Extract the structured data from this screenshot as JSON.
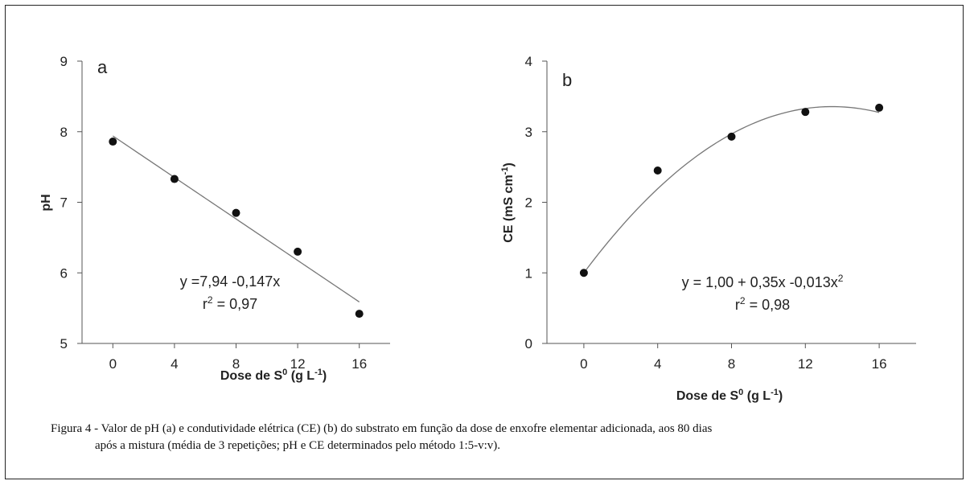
{
  "chart_data": [
    {
      "type": "scatter",
      "panel_label": "a",
      "x": [
        0,
        4,
        8,
        12,
        16
      ],
      "y": [
        7.86,
        7.33,
        6.85,
        6.3,
        5.42
      ],
      "fit": {
        "kind": "linear",
        "intercept": 7.94,
        "slope": -0.147,
        "x_range": [
          0,
          16
        ]
      },
      "equation": "y =7,94 -0,147x",
      "r2_prefix": "r",
      "r2_value": " = 0,97",
      "xlabel": "Dose de S",
      "xlabel_sup": "0",
      "xlabel_unit": " (g L",
      "xlabel_unit_sup": "-1",
      "xlabel_close": ")",
      "ylabel": "pH",
      "xticks": [
        0,
        4,
        8,
        12,
        16
      ],
      "yticks": [
        5,
        6,
        7,
        8,
        9
      ],
      "xlim": [
        -2,
        18
      ],
      "ylim": [
        5,
        9
      ],
      "grid": false
    },
    {
      "type": "scatter",
      "panel_label": "b",
      "x": [
        0,
        4,
        8,
        12,
        16
      ],
      "y": [
        1.0,
        2.45,
        2.93,
        3.28,
        3.34
      ],
      "fit": {
        "kind": "quadratic",
        "a": 1.0,
        "b": 0.35,
        "c": -0.013,
        "x_range": [
          0,
          16
        ]
      },
      "equation": "y = 1,00 + 0,35x -0,013x",
      "equation_sup": "2",
      "r2_prefix": "r",
      "r2_value": " = 0,98",
      "xlabel": "Dose de S",
      "xlabel_sup": "0",
      "xlabel_unit": " (g L",
      "xlabel_unit_sup": "-1",
      "xlabel_close": ")",
      "ylabel": "CE (mS cm",
      "ylabel_sup": "-1",
      "ylabel_close": ")",
      "xticks": [
        0,
        4,
        8,
        12,
        16
      ],
      "yticks": [
        0,
        1,
        2,
        3,
        4
      ],
      "xlim": [
        -2,
        18
      ],
      "ylim": [
        0,
        4
      ],
      "grid": false
    }
  ],
  "caption": {
    "line1": "Figura 4 - Valor de pH (a) e condutividade elétrica (CE) (b) do substrato em função da dose de enxofre elementar adicionada, aos 80 dias",
    "line2": "após a mistura (média de 3 repetições; pH e CE determinados pelo método 1:5-v:v)."
  }
}
